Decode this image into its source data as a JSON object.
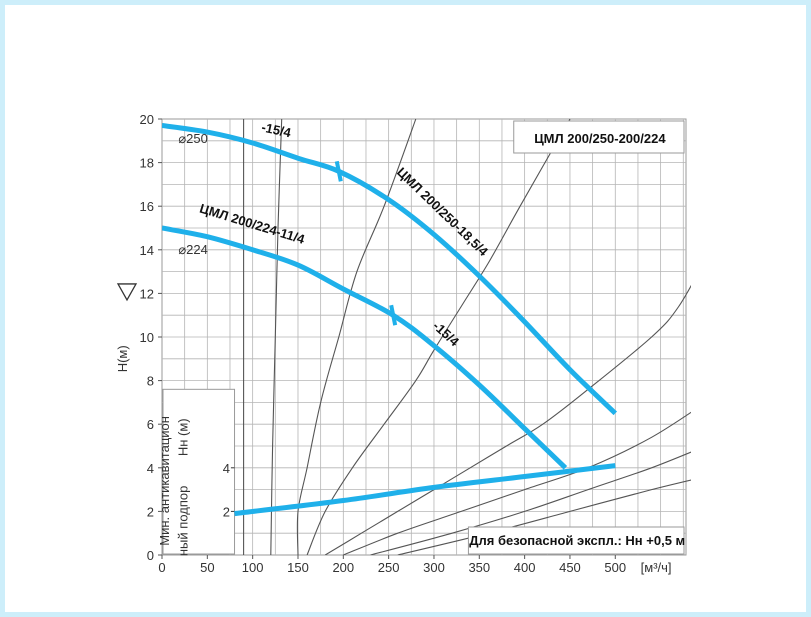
{
  "chart_data": {
    "type": "line",
    "title": "ЦМЛ 200/250-200/224",
    "ylabel": "H(м)",
    "xunit": "[м³/ч]",
    "xlim": [
      0,
      500
    ],
    "ylim": [
      0,
      20
    ],
    "x_ticks": [
      0,
      50,
      100,
      150,
      200,
      250,
      300,
      350,
      400,
      450,
      500
    ],
    "y_ticks": [
      0,
      2,
      4,
      6,
      8,
      10,
      12,
      14,
      16,
      18,
      20
    ],
    "grid": true,
    "accent_color": "#1fb0ea",
    "series": [
      {
        "name": "ЦМЛ 200/250-18,5/4",
        "diameter": "⌀250",
        "left_label": "-15/4",
        "break_x": 195,
        "points": [
          [
            0,
            19.7
          ],
          [
            50,
            19.4
          ],
          [
            100,
            18.9
          ],
          [
            150,
            18.2
          ],
          [
            195,
            17.6
          ],
          [
            250,
            16.3
          ],
          [
            300,
            14.7
          ],
          [
            350,
            12.8
          ],
          [
            400,
            10.7
          ],
          [
            450,
            8.5
          ],
          [
            500,
            6.5
          ]
        ]
      },
      {
        "name": "ЦМЛ 200/224-11/4",
        "diameter": "⌀224",
        "right_label": "-15/4",
        "break_x": 255,
        "points": [
          [
            0,
            15.0
          ],
          [
            50,
            14.6
          ],
          [
            100,
            14.0
          ],
          [
            150,
            13.3
          ],
          [
            200,
            12.2
          ],
          [
            255,
            11.0
          ],
          [
            300,
            9.6
          ],
          [
            350,
            7.8
          ],
          [
            400,
            5.8
          ],
          [
            445,
            4.0
          ]
        ]
      },
      {
        "name": "Мин. антикавитационный подпор Нн (м)",
        "points": [
          [
            80,
            1.9
          ],
          [
            200,
            2.5
          ],
          [
            300,
            3.1
          ],
          [
            400,
            3.6
          ],
          [
            500,
            4.1
          ]
        ]
      }
    ],
    "system_curves": [
      [
        [
          90,
          0
        ],
        [
          90,
          2
        ],
        [
          90,
          5
        ],
        [
          90,
          9
        ],
        [
          90,
          13
        ],
        [
          90,
          17
        ],
        [
          90,
          20
        ]
      ],
      [
        [
          120,
          0
        ],
        [
          122,
          5
        ],
        [
          125,
          10
        ],
        [
          128,
          15
        ],
        [
          132,
          20
        ]
      ],
      [
        [
          150,
          0
        ],
        [
          150,
          2
        ],
        [
          160,
          4
        ],
        [
          175,
          7
        ],
        [
          195,
          10
        ],
        [
          215,
          13
        ],
        [
          245,
          16
        ],
        [
          280,
          20
        ]
      ],
      [
        [
          160,
          0
        ],
        [
          180,
          2
        ],
        [
          210,
          4
        ],
        [
          245,
          6
        ],
        [
          280,
          8
        ],
        [
          300,
          9.4
        ],
        [
          330,
          11.4
        ],
        [
          360,
          13.4
        ],
        [
          395,
          16
        ],
        [
          450,
          20
        ]
      ],
      [
        [
          180,
          0
        ],
        [
          220,
          1
        ],
        [
          260,
          2
        ],
        [
          300,
          3
        ],
        [
          340,
          4
        ],
        [
          380,
          5
        ],
        [
          420,
          6
        ],
        [
          470,
          7.6
        ],
        [
          540,
          10
        ],
        [
          570,
          11.4
        ],
        [
          600,
          13.6
        ]
      ],
      [
        [
          200,
          0
        ],
        [
          260,
          1
        ],
        [
          330,
          2
        ],
        [
          400,
          3
        ],
        [
          470,
          4
        ],
        [
          540,
          5.4
        ],
        [
          600,
          7
        ]
      ],
      [
        [
          230,
          0
        ],
        [
          320,
          1
        ],
        [
          400,
          2
        ],
        [
          470,
          3
        ],
        [
          540,
          4
        ],
        [
          600,
          5
        ]
      ],
      [
        [
          260,
          0
        ],
        [
          360,
          1
        ],
        [
          450,
          2
        ],
        [
          540,
          3
        ],
        [
          600,
          3.6
        ]
      ]
    ],
    "legend_box": "ЦМЛ 200/250-200/224",
    "note": "Для безопасной экспл.: Нн +0,5 м",
    "npsh_axis_label": "Мин. антикавитацион ный подпор Нн (м)",
    "npsh_ticks": [
      2,
      4
    ]
  }
}
